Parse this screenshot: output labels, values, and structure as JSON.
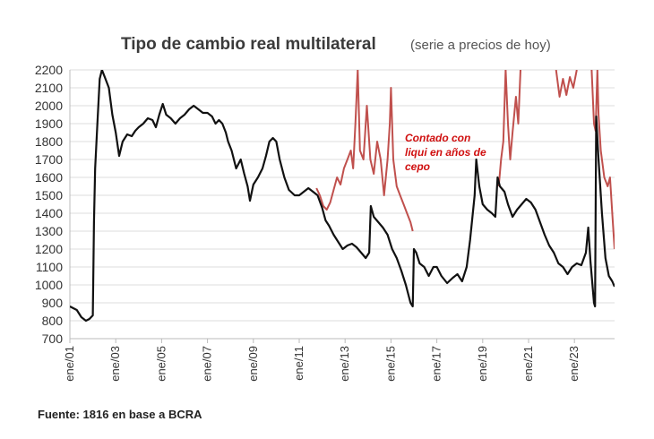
{
  "chart_data": {
    "type": "line",
    "title": "Tipo de cambio real multilateral",
    "subtitle": "(serie a precios de hoy)",
    "source": "Fuente: 1816 en base a BCRA",
    "annotation": [
      "Contado con",
      "liqui en años de",
      "cepo"
    ],
    "ylim": [
      700,
      2200
    ],
    "yticks": [
      700,
      800,
      900,
      1000,
      1100,
      1200,
      1300,
      1400,
      1500,
      1600,
      1700,
      1800,
      1900,
      2000,
      2100,
      2200
    ],
    "xlim": [
      2001.0,
      2024.75
    ],
    "xticks": [
      {
        "x": 2001,
        "label": "ene/01"
      },
      {
        "x": 2003,
        "label": "ene/03"
      },
      {
        "x": 2005,
        "label": "ene/05"
      },
      {
        "x": 2007,
        "label": "ene/07"
      },
      {
        "x": 2009,
        "label": "ene/09"
      },
      {
        "x": 2011,
        "label": "ene/11"
      },
      {
        "x": 2013,
        "label": "ene/13"
      },
      {
        "x": 2015,
        "label": "ene/15"
      },
      {
        "x": 2017,
        "label": "ene/17"
      },
      {
        "x": 2019,
        "label": "ene/19"
      },
      {
        "x": 2021,
        "label": "ene/21"
      },
      {
        "x": 2023,
        "label": "ene/23"
      }
    ],
    "colors": {
      "official": "#111111",
      "ccl": "#c0504d",
      "grid": "#dddddd",
      "axis": "#bbbbbb"
    },
    "series": [
      {
        "key": "official",
        "segments": [
          [
            [
              2001.0,
              880
            ],
            [
              2001.15,
              870
            ],
            [
              2001.3,
              860
            ],
            [
              2001.5,
              820
            ],
            [
              2001.7,
              800
            ],
            [
              2001.85,
              810
            ],
            [
              2002.0,
              830
            ],
            [
              2002.05,
              1350
            ],
            [
              2002.1,
              1650
            ],
            [
              2002.2,
              1900
            ],
            [
              2002.3,
              2150
            ],
            [
              2002.4,
              2200
            ],
            [
              2002.55,
              2150
            ],
            [
              2002.7,
              2100
            ],
            [
              2002.85,
              1950
            ],
            [
              2003.0,
              1850
            ],
            [
              2003.15,
              1720
            ],
            [
              2003.3,
              1800
            ],
            [
              2003.5,
              1840
            ],
            [
              2003.7,
              1830
            ],
            [
              2003.85,
              1860
            ],
            [
              2004.0,
              1880
            ],
            [
              2004.2,
              1900
            ],
            [
              2004.4,
              1930
            ],
            [
              2004.6,
              1920
            ],
            [
              2004.75,
              1880
            ],
            [
              2004.9,
              1950
            ],
            [
              2005.05,
              2010
            ],
            [
              2005.2,
              1950
            ],
            [
              2005.4,
              1930
            ],
            [
              2005.6,
              1900
            ],
            [
              2005.8,
              1930
            ],
            [
              2006.0,
              1950
            ],
            [
              2006.2,
              1980
            ],
            [
              2006.4,
              2000
            ],
            [
              2006.6,
              1980
            ],
            [
              2006.8,
              1960
            ],
            [
              2007.0,
              1960
            ],
            [
              2007.2,
              1940
            ],
            [
              2007.35,
              1900
            ],
            [
              2007.5,
              1920
            ],
            [
              2007.65,
              1900
            ],
            [
              2007.8,
              1850
            ],
            [
              2007.9,
              1800
            ],
            [
              2008.05,
              1750
            ],
            [
              2008.25,
              1650
            ],
            [
              2008.45,
              1700
            ],
            [
              2008.6,
              1620
            ],
            [
              2008.75,
              1550
            ],
            [
              2008.85,
              1470
            ],
            [
              2009.0,
              1560
            ],
            [
              2009.2,
              1600
            ],
            [
              2009.4,
              1650
            ],
            [
              2009.55,
              1720
            ],
            [
              2009.7,
              1800
            ],
            [
              2009.85,
              1820
            ],
            [
              2010.0,
              1800
            ],
            [
              2010.15,
              1700
            ],
            [
              2010.35,
              1600
            ],
            [
              2010.55,
              1530
            ],
            [
              2010.8,
              1500
            ],
            [
              2011.0,
              1500
            ],
            [
              2011.2,
              1520
            ],
            [
              2011.4,
              1540
            ],
            [
              2011.6,
              1520
            ],
            [
              2011.8,
              1500
            ],
            [
              2012.0,
              1430
            ],
            [
              2012.15,
              1360
            ],
            [
              2012.3,
              1330
            ],
            [
              2012.5,
              1280
            ],
            [
              2012.7,
              1240
            ],
            [
              2012.9,
              1200
            ],
            [
              2013.1,
              1220
            ],
            [
              2013.3,
              1230
            ],
            [
              2013.5,
              1210
            ],
            [
              2013.7,
              1180
            ],
            [
              2013.9,
              1150
            ],
            [
              2014.05,
              1180
            ],
            [
              2014.12,
              1440
            ],
            [
              2014.25,
              1380
            ],
            [
              2014.45,
              1350
            ],
            [
              2014.65,
              1320
            ],
            [
              2014.85,
              1280
            ],
            [
              2015.05,
              1200
            ],
            [
              2015.25,
              1150
            ],
            [
              2015.45,
              1080
            ],
            [
              2015.65,
              1000
            ],
            [
              2015.85,
              900
            ],
            [
              2015.95,
              880
            ],
            [
              2016.0,
              1200
            ],
            [
              2016.1,
              1180
            ],
            [
              2016.25,
              1120
            ],
            [
              2016.45,
              1100
            ],
            [
              2016.65,
              1050
            ],
            [
              2016.85,
              1100
            ],
            [
              2017.0,
              1100
            ],
            [
              2017.2,
              1050
            ],
            [
              2017.45,
              1010
            ],
            [
              2017.7,
              1040
            ],
            [
              2017.9,
              1060
            ],
            [
              2018.1,
              1020
            ],
            [
              2018.3,
              1100
            ],
            [
              2018.45,
              1250
            ],
            [
              2018.65,
              1500
            ],
            [
              2018.72,
              1700
            ],
            [
              2018.85,
              1550
            ],
            [
              2019.0,
              1450
            ],
            [
              2019.2,
              1420
            ],
            [
              2019.4,
              1400
            ],
            [
              2019.55,
              1380
            ],
            [
              2019.65,
              1600
            ],
            [
              2019.75,
              1550
            ],
            [
              2019.95,
              1520
            ],
            [
              2020.1,
              1450
            ],
            [
              2020.3,
              1380
            ],
            [
              2020.5,
              1420
            ],
            [
              2020.7,
              1450
            ],
            [
              2020.9,
              1480
            ],
            [
              2021.1,
              1460
            ],
            [
              2021.3,
              1420
            ],
            [
              2021.5,
              1350
            ],
            [
              2021.7,
              1280
            ],
            [
              2021.9,
              1220
            ],
            [
              2022.1,
              1180
            ],
            [
              2022.3,
              1120
            ],
            [
              2022.5,
              1100
            ],
            [
              2022.7,
              1060
            ],
            [
              2022.9,
              1100
            ],
            [
              2023.1,
              1120
            ],
            [
              2023.3,
              1110
            ],
            [
              2023.5,
              1180
            ],
            [
              2023.6,
              1320
            ],
            [
              2023.7,
              1130
            ],
            [
              2023.85,
              900
            ],
            [
              2023.9,
              880
            ],
            [
              2023.95,
              1940
            ],
            [
              2024.05,
              1700
            ],
            [
              2024.2,
              1400
            ],
            [
              2024.35,
              1150
            ],
            [
              2024.5,
              1050
            ],
            [
              2024.65,
              1020
            ],
            [
              2024.75,
              990
            ]
          ]
        ]
      },
      {
        "key": "ccl",
        "segments": [
          [
            [
              2011.75,
              1540
            ],
            [
              2011.9,
              1500
            ],
            [
              2012.05,
              1440
            ],
            [
              2012.2,
              1420
            ],
            [
              2012.35,
              1460
            ],
            [
              2012.5,
              1530
            ],
            [
              2012.65,
              1600
            ],
            [
              2012.8,
              1560
            ],
            [
              2012.95,
              1650
            ],
            [
              2013.1,
              1700
            ],
            [
              2013.25,
              1750
            ],
            [
              2013.35,
              1650
            ],
            [
              2013.45,
              1900
            ],
            [
              2013.55,
              2200
            ],
            [
              2013.65,
              1750
            ],
            [
              2013.8,
              1700
            ],
            [
              2013.95,
              2000
            ],
            [
              2014.1,
              1700
            ],
            [
              2014.25,
              1620
            ],
            [
              2014.4,
              1800
            ],
            [
              2014.55,
              1700
            ],
            [
              2014.7,
              1500
            ],
            [
              2014.85,
              1700
            ],
            [
              2014.95,
              1900
            ],
            [
              2015.0,
              2100
            ],
            [
              2015.1,
              1700
            ],
            [
              2015.25,
              1550
            ],
            [
              2015.4,
              1500
            ],
            [
              2015.55,
              1450
            ],
            [
              2015.7,
              1400
            ],
            [
              2015.85,
              1350
            ],
            [
              2015.95,
              1300
            ]
          ],
          [
            [
              2019.7,
              1550
            ],
            [
              2019.8,
              1700
            ],
            [
              2019.9,
              1800
            ],
            [
              2020.0,
              2200
            ],
            [
              2020.1,
              1900
            ],
            [
              2020.2,
              1700
            ],
            [
              2020.3,
              1850
            ],
            [
              2020.45,
              2050
            ],
            [
              2020.55,
              1900
            ],
            [
              2020.65,
              2200
            ]
          ],
          [
            [
              2022.2,
              2200
            ],
            [
              2022.35,
              2050
            ],
            [
              2022.5,
              2150
            ],
            [
              2022.65,
              2060
            ],
            [
              2022.8,
              2160
            ],
            [
              2022.95,
              2100
            ],
            [
              2023.1,
              2200
            ]
          ],
          [
            [
              2023.75,
              2200
            ],
            [
              2023.85,
              1900
            ],
            [
              2023.92,
              1860
            ],
            [
              2024.0,
              2200
            ],
            [
              2024.05,
              1950
            ],
            [
              2024.15,
              1750
            ],
            [
              2024.3,
              1600
            ],
            [
              2024.45,
              1550
            ],
            [
              2024.55,
              1600
            ],
            [
              2024.65,
              1400
            ],
            [
              2024.75,
              1200
            ]
          ]
        ]
      }
    ]
  }
}
